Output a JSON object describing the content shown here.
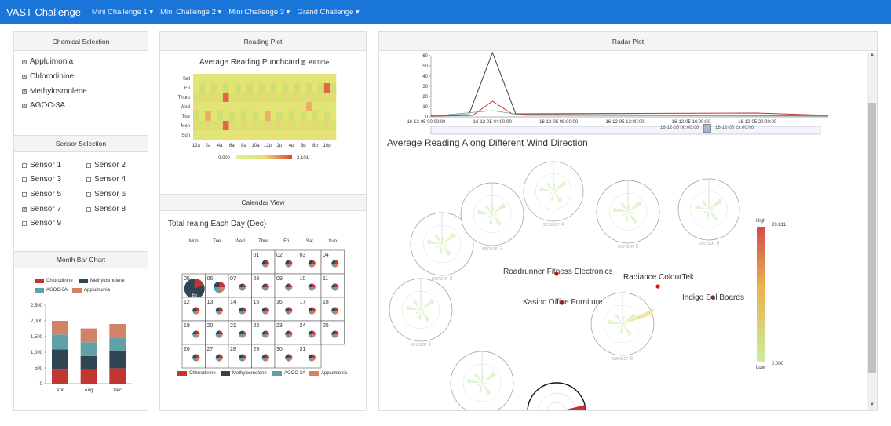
{
  "navbar": {
    "brand": "VAST Challenge",
    "items": [
      "Mini Challenge 1 ▾",
      "Mini Challenge 2 ▾",
      "Mini Challenge 3 ▾",
      "Grand Challenge ▾"
    ]
  },
  "left": {
    "chemical_title": "Chemical Selection",
    "chemicals": [
      {
        "label": "Appluimonia",
        "checked": true
      },
      {
        "label": "Chlorodinine",
        "checked": true
      },
      {
        "label": "Methylosmolene",
        "checked": true
      },
      {
        "label": "AGOC-3A",
        "checked": true
      }
    ],
    "sensor_title": "Sensor Selection",
    "sensors": [
      {
        "label": "Sensor 1",
        "checked": false
      },
      {
        "label": "Sensor 2",
        "checked": false
      },
      {
        "label": "Sensor 3",
        "checked": false
      },
      {
        "label": "Sensor 4",
        "checked": false
      },
      {
        "label": "Sensor 5",
        "checked": false
      },
      {
        "label": "Sensor 6",
        "checked": false
      },
      {
        "label": "Sensor 7",
        "checked": true
      },
      {
        "label": "Sensor 8",
        "checked": false
      },
      {
        "label": "Sensor 9",
        "checked": false
      }
    ],
    "bar_title": "Month Bar Chart"
  },
  "middle": {
    "reading_title": "Reading Plot",
    "punchcard_title": "Average Reading Punchcard",
    "alltime_label": "All time",
    "scale_min": "0.000",
    "scale_max": "2.101",
    "calendar_title": "Calendar View",
    "calendar_subtitle": "Total reaing Each Day (Dec)",
    "weekdays": [
      "Mon",
      "Tue",
      "Wed",
      "Thur",
      "Fri",
      "Sat",
      "Sun"
    ],
    "highlight_value": "85",
    "legend": [
      "Chlorodinine",
      "Methylosmolene",
      "AGOC-3A",
      "Appluimonia"
    ]
  },
  "right": {
    "radar_title": "Radar Plot",
    "line_x_labels": [
      "16-12-05 00:00:00",
      "16-12-05 04:00:00",
      "16-12-05 08:00:00",
      "16-12-05 12:00:00",
      "16-12-05 16:00:00",
      "16-12-05 20:00:00"
    ],
    "slider_start": "16-12-05 00:00:00",
    "slider_end": "16-12-05 23:00:00",
    "wind_title": "Average Reading Along Different Wind Direction",
    "sensor_labels": [
      "sensor 1",
      "sensor 2",
      "sensor 3",
      "sensor 4",
      "sensor 5",
      "sensor 6",
      "sensor 9"
    ],
    "factories": [
      "Roadrunner Fitness Electronics",
      "Radiance ColourTek",
      "Kasioc Office Furniture",
      "Indigo Sol Boards"
    ],
    "legend_high": "High",
    "legend_low": "Low",
    "legend_max": "20.811",
    "legend_min": "0.000"
  },
  "colors": {
    "navbar": "#1a75d8",
    "chlorodinine": "#c23531",
    "methylosmolene": "#2f4554",
    "agoc": "#61a0a8",
    "appluimonia": "#d48265"
  },
  "chart_data": [
    {
      "type": "bar",
      "title": "",
      "categories": [
        "Apr",
        "Aug",
        "Dec"
      ],
      "series": [
        {
          "name": "Chlorodinine",
          "values": [
            470,
            460,
            490
          ]
        },
        {
          "name": "Methylosmolene",
          "values": [
            620,
            420,
            560
          ]
        },
        {
          "name": "AGOC-3A",
          "values": [
            480,
            440,
            420
          ]
        },
        {
          "name": "Appluimonia",
          "values": [
            430,
            440,
            430
          ]
        }
      ],
      "ylim": [
        0,
        2500
      ],
      "yticks": [
        "0",
        "500",
        "1,000",
        "1,500",
        "2,000",
        "2,500"
      ],
      "legend_position": "top",
      "stacked": true
    },
    {
      "type": "heatmap",
      "title": "Average Reading Punchcard",
      "x": [
        "12a",
        "2a",
        "4a",
        "6a",
        "8a",
        "10a",
        "12p",
        "2p",
        "4p",
        "6p",
        "8p",
        "10p"
      ],
      "y": [
        "Sat",
        "Fri",
        "Thurs",
        "Wed",
        "Tue",
        "Mon",
        "Sun"
      ],
      "range": [
        0,
        2.101
      ]
    },
    {
      "type": "line",
      "title": "",
      "x": [
        "16-12-05 00:00:00",
        "16-12-05 04:00:00",
        "16-12-05 08:00:00",
        "16-12-05 12:00:00",
        "16-12-05 16:00:00",
        "16-12-05 20:00:00"
      ],
      "ylim": [
        0,
        60
      ],
      "yticks": [
        "0",
        "10",
        "20",
        "30",
        "40",
        "50",
        "60"
      ],
      "peak_value": 63
    }
  ]
}
